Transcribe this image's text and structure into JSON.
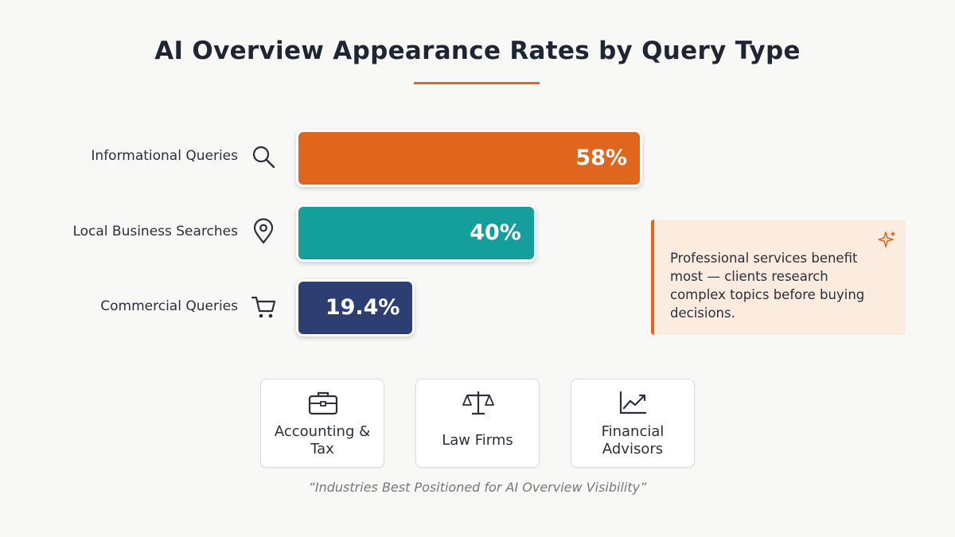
{
  "chart_data": {
    "type": "bar",
    "orientation": "horizontal",
    "title": "AI Overview Appearance Rates by Query Type",
    "categories": [
      "Informational Queries",
      "Local Business Searches",
      "Commercial Queries"
    ],
    "values": [
      58,
      40,
      19.4
    ],
    "value_labels": [
      "58%",
      "40%",
      "19.4%"
    ],
    "colors": [
      "#e0661d",
      "#149e9c",
      "#2d3f72"
    ]
  },
  "callout": {
    "text": "Professional services benefit most — clients research complex topics before buying decisions."
  },
  "industries": {
    "items": [
      "Accounting & Tax",
      "Law Firms",
      "Financial Advisors"
    ],
    "caption": "“Industries Best Positioned for AI Overview Visibility”"
  }
}
